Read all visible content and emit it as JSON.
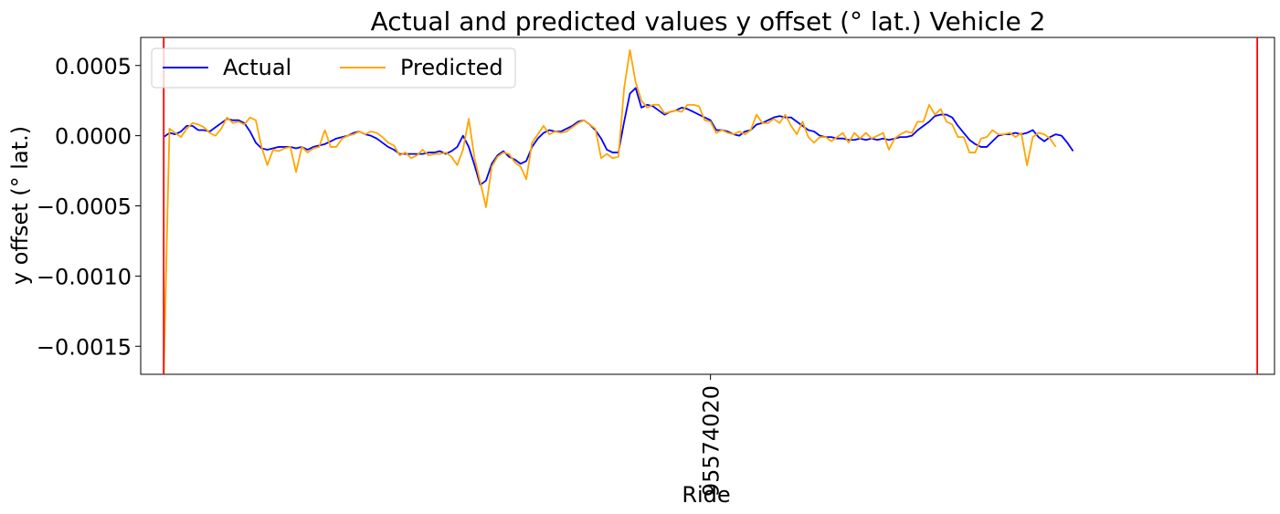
{
  "chart_data": {
    "type": "line",
    "title": "Actual and predicted values y offset (° lat.) Vehicle 2",
    "xlabel": "Ride",
    "ylabel": "y offset (° lat.)",
    "xlim": [
      -4,
      193
    ],
    "ylim": [
      -0.0017,
      0.0007
    ],
    "yticks": [
      "0.0005",
      "0.0000",
      "−0.0005",
      "−0.0010",
      "−0.0015"
    ],
    "ytick_values": [
      0.0005,
      0.0,
      -0.0005,
      -0.001,
      -0.0015
    ],
    "xtick_label": "95574020",
    "xtick_index": 95,
    "vlines": [
      {
        "x": 0,
        "color": "#ff0000"
      },
      {
        "x": 190,
        "color": "#ff0000"
      }
    ],
    "legend": {
      "placement": "top-left",
      "ncol": 2
    },
    "series": [
      {
        "name": "Actual",
        "color": "#0000ff",
        "values": [
          -1e-05,
          2e-05,
          1e-05,
          3e-05,
          7e-05,
          7e-05,
          4e-05,
          4e-05,
          3e-05,
          6e-05,
          9e-05,
          0.00012,
          0.00011,
          0.00011,
          9e-05,
          3e-05,
          -5e-05,
          -9e-05,
          -0.0001,
          -9e-05,
          -8e-05,
          -8e-05,
          -8e-05,
          -9e-05,
          -8e-05,
          -0.0001,
          -8e-05,
          -7e-05,
          -6e-05,
          -4e-05,
          -2e-05,
          -1e-05,
          0.0,
          2e-05,
          3e-05,
          1e-05,
          0.0,
          -2e-05,
          -5e-05,
          -8e-05,
          -0.0001,
          -0.00013,
          -0.00013,
          -0.00013,
          -0.00013,
          -0.00013,
          -0.00012,
          -0.00012,
          -0.00011,
          -0.00013,
          -0.00011,
          -8e-05,
          0.0,
          -8e-05,
          -0.00021,
          -0.00035,
          -0.00032,
          -0.0002,
          -0.00014,
          -0.00011,
          -0.00015,
          -0.00017,
          -0.0002,
          -0.00018,
          -8e-05,
          -2e-05,
          2e-05,
          4e-05,
          3e-05,
          3e-05,
          5e-05,
          7e-05,
          0.0001,
          0.00011,
          8e-05,
          4e-05,
          -2e-05,
          -0.0001,
          -0.00012,
          -0.00012,
          0.0001,
          0.0003,
          0.00034,
          0.0002,
          0.00022,
          0.00021,
          0.00018,
          0.00015,
          0.00017,
          0.00018,
          0.0002,
          0.00019,
          0.00017,
          0.00015,
          0.00013,
          0.00011,
          4e-05,
          4e-05,
          3e-05,
          1e-05,
          0.0,
          3e-05,
          4e-05,
          8e-05,
          9e-05,
          0.00011,
          0.00013,
          0.00014,
          0.00013,
          0.00013,
          0.0001,
          7e-05,
          4e-05,
          3e-05,
          0.0,
          -1e-05,
          -1e-05,
          -2e-05,
          -2e-05,
          -3e-05,
          -3e-05,
          -2e-05,
          -3e-05,
          -2e-05,
          -3e-05,
          -2e-05,
          -3e-05,
          -2e-05,
          -1e-05,
          -1e-05,
          0.0,
          4e-05,
          7e-05,
          0.0001,
          0.00014,
          0.00015,
          0.00015,
          0.00013,
          7e-05,
          2e-05,
          -3e-05,
          -6e-05,
          -8e-05,
          -8e-05,
          -4e-05,
          0.0,
          1e-05,
          1e-05,
          2e-05,
          1e-05,
          2e-05,
          4e-05,
          -1e-05,
          -4e-05,
          -1e-05,
          1e-05,
          0.0,
          -5e-05,
          -0.00011
        ],
        "x_start": 0
      },
      {
        "name": "Predicted",
        "color": "#ffa500",
        "values": [
          -0.0017,
          5e-05,
          2e-05,
          -1e-05,
          5e-05,
          9e-05,
          8e-05,
          6e-05,
          2e-05,
          0.0,
          5e-05,
          0.00013,
          9e-05,
          0.0001,
          8e-05,
          0.00013,
          0.00011,
          -8e-05,
          -0.00021,
          -0.0001,
          -0.00011,
          -9e-05,
          -8e-05,
          -0.00026,
          -8e-05,
          -0.00012,
          -9e-05,
          -8e-05,
          4e-05,
          -8e-05,
          -8e-05,
          -2e-05,
          0.0,
          1e-05,
          3e-05,
          1e-05,
          3e-05,
          2e-05,
          -1e-05,
          -5e-05,
          -7e-05,
          -0.00014,
          -0.00012,
          -0.00016,
          -0.00014,
          -0.0001,
          -0.00014,
          -0.00013,
          -0.00013,
          -0.00012,
          -0.00015,
          -0.00021,
          -0.0001,
          0.00012,
          -0.00016,
          -0.00033,
          -0.00051,
          -0.00022,
          -0.00015,
          -0.00012,
          -0.00013,
          -0.00019,
          -0.00022,
          -0.00031,
          -5e-05,
          1e-05,
          7e-05,
          1e-05,
          3e-05,
          2e-05,
          3e-05,
          6e-05,
          9e-05,
          0.00011,
          8e-05,
          5e-05,
          -0.00016,
          -0.00013,
          -0.00016,
          -0.00015,
          0.00034,
          0.00061,
          0.00038,
          0.00025,
          0.0002,
          0.00022,
          0.00022,
          0.00016,
          0.00017,
          0.00018,
          0.00017,
          0.00022,
          0.00022,
          0.00021,
          0.00011,
          0.0001,
          2e-05,
          4e-05,
          2e-05,
          1e-05,
          3e-05,
          1e-05,
          4e-05,
          0.00015,
          9e-05,
          9e-05,
          0.00012,
          9e-05,
          0.00015,
          7e-05,
          1e-05,
          0.0001,
          -1e-05,
          -5e-05,
          -1e-05,
          -1e-05,
          -4e-05,
          -1e-05,
          2e-05,
          -5e-05,
          2e-05,
          -2e-05,
          2e-05,
          -2e-05,
          0.0,
          2e-05,
          -0.0001,
          -2e-05,
          1e-05,
          3e-05,
          2e-05,
          0.0001,
          0.0001,
          0.00022,
          0.00015,
          0.00019,
          0.0001,
          8e-05,
          -1e-05,
          -1e-05,
          -0.00012,
          -0.00012,
          -2e-05,
          -1e-05,
          4e-05,
          1e-05,
          1e-05,
          2e-05,
          -1e-05,
          2e-05,
          -0.00021,
          -1e-05,
          2e-05,
          1e-05,
          -2e-05,
          -8e-05
        ],
        "x_start": 0
      }
    ]
  }
}
